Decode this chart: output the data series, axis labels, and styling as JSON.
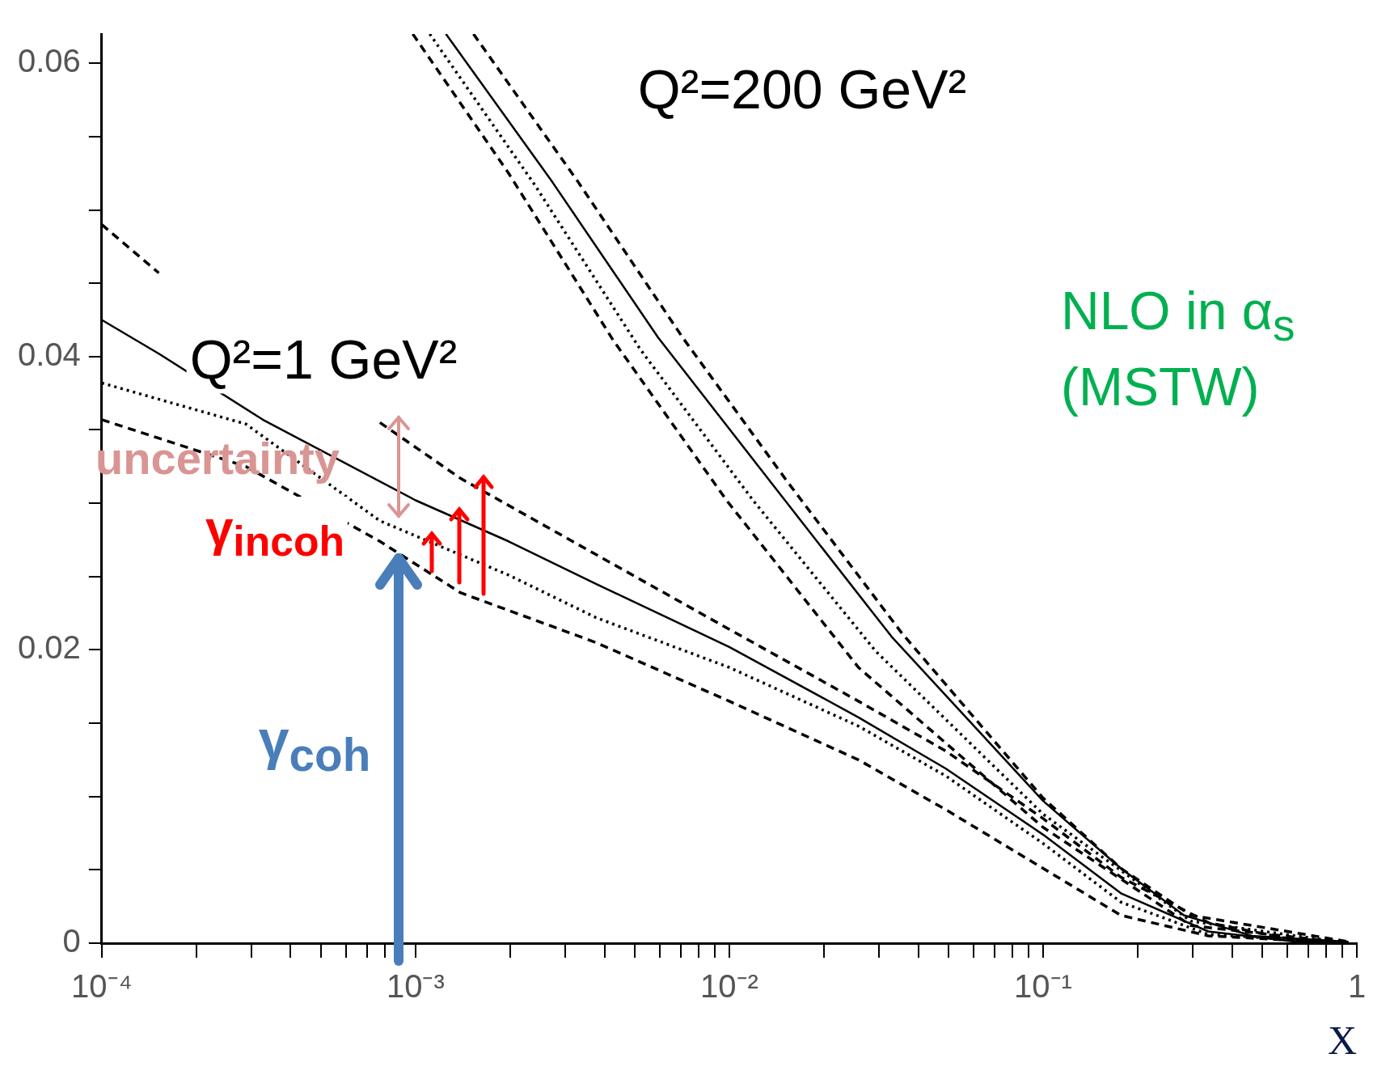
{
  "chart_data": {
    "type": "line",
    "xlabel": "X",
    "log": "x",
    "grid": false,
    "legend": false,
    "marker": "none",
    "xlim": [
      0.0001,
      1
    ],
    "ylim": [
      0,
      0.062
    ],
    "xticks": [
      {
        "value": 0.0001,
        "label": "10⁻⁴"
      },
      {
        "value": 0.0002,
        "label": null
      },
      {
        "value": 0.0003,
        "label": null
      },
      {
        "value": 0.0004,
        "label": null
      },
      {
        "value": 0.0005,
        "label": null
      },
      {
        "value": 0.0006,
        "label": null
      },
      {
        "value": 0.0007,
        "label": null
      },
      {
        "value": 0.0008,
        "label": null
      },
      {
        "value": 0.0009,
        "label": null
      },
      {
        "value": 0.001,
        "label": "10⁻³"
      },
      {
        "value": 0.002,
        "label": null
      },
      {
        "value": 0.003,
        "label": null
      },
      {
        "value": 0.004,
        "label": null
      },
      {
        "value": 0.005,
        "label": null
      },
      {
        "value": 0.006,
        "label": null
      },
      {
        "value": 0.007,
        "label": null
      },
      {
        "value": 0.008,
        "label": null
      },
      {
        "value": 0.009,
        "label": null
      },
      {
        "value": 0.01,
        "label": "10⁻²"
      },
      {
        "value": 0.02,
        "label": null
      },
      {
        "value": 0.03,
        "label": null
      },
      {
        "value": 0.04,
        "label": null
      },
      {
        "value": 0.05,
        "label": null
      },
      {
        "value": 0.06,
        "label": null
      },
      {
        "value": 0.07,
        "label": null
      },
      {
        "value": 0.08,
        "label": null
      },
      {
        "value": 0.09,
        "label": null
      },
      {
        "value": 0.1,
        "label": "10⁻¹"
      },
      {
        "value": 0.2,
        "label": null
      },
      {
        "value": 0.3,
        "label": null
      },
      {
        "value": 0.4,
        "label": null
      },
      {
        "value": 0.5,
        "label": null
      },
      {
        "value": 0.6,
        "label": null
      },
      {
        "value": 0.7,
        "label": null
      },
      {
        "value": 0.8,
        "label": null
      },
      {
        "value": 0.9,
        "label": null
      },
      {
        "value": 1,
        "label": "1"
      }
    ],
    "yticks": [
      0,
      {
        "value": 0.005,
        "label": null
      },
      {
        "value": 0.01,
        "label": null
      },
      {
        "value": 0.015,
        "label": null
      },
      0.02,
      {
        "value": 0.025,
        "label": null
      },
      {
        "value": 0.03,
        "label": null
      },
      {
        "value": 0.035,
        "label": null
      },
      0.04,
      {
        "value": 0.045,
        "label": null
      },
      {
        "value": 0.05,
        "label": null
      },
      {
        "value": 0.055,
        "label": null
      },
      0.06
    ],
    "series": [
      {
        "color": "#000000",
        "line_style": "dashed",
        "x": [
          0.0001,
          0.000152,
          0.000288,
          0.00077,
          0.00139,
          0.00376,
          0.01,
          0.0258,
          0.049,
          0.1,
          0.177,
          0.336,
          0.64,
          0.94
        ],
        "values": [
          0.049,
          0.0457,
          null,
          0.0355,
          0.0317,
          0.0265,
          0.0214,
          0.0165,
          0.0131,
          0.0085,
          0.0045,
          0.0014,
          0.0002,
          0.0001
        ]
      },
      {
        "color": "#000000",
        "line_style": "solid",
        "x": [
          0.0001,
          0.000152,
          0.000326,
          0.001,
          0.00198,
          0.00376,
          0.01,
          0.0258,
          0.049,
          0.1,
          0.177,
          0.336,
          0.64,
          0.94
        ],
        "values": [
          0.0425,
          0.0402,
          0.0357,
          0.0302,
          0.0274,
          0.0245,
          0.0202,
          0.0154,
          0.0119,
          0.0074,
          0.0034,
          0.0008,
          0.0001,
          0
        ]
      },
      {
        "color": "#000000",
        "line_style": "dotted",
        "x": [
          0.0001,
          0.000288,
          0.00077,
          0.00198,
          0.00376,
          0.01,
          0.0258,
          0.049,
          0.1,
          0.177,
          0.336,
          0.94
        ],
        "values": [
          0.0382,
          0.0354,
          0.0288,
          0.0251,
          0.0222,
          0.0188,
          0.0148,
          0.0114,
          0.0068,
          0.0028,
          0.0006,
          0
        ]
      },
      {
        "color": "#000000",
        "line_style": "dashed",
        "x": [
          0.0001,
          0.000288,
          0.00077,
          0.00139,
          0.00376,
          0.01,
          0.0258,
          0.049,
          0.1,
          0.177,
          0.336,
          0.94
        ],
        "values": [
          0.0357,
          0.0325,
          0.0274,
          0.0239,
          0.0205,
          0.0165,
          0.0125,
          0.0091,
          0.0051,
          0.0019,
          0.0005,
          0
        ]
      },
      {
        "color": "#000000",
        "line_style": "dashed",
        "x": [
          0.00153,
          0.0033,
          0.0071,
          0.0154,
          0.0356,
          0.1,
          0.177,
          0.296,
          0.94
        ],
        "values": [
          0.062,
          0.0519,
          0.0413,
          0.0314,
          0.0211,
          0.0099,
          0.0051,
          0.0019,
          0.0001
        ]
      },
      {
        "color": "#000000",
        "line_style": "solid",
        "x": [
          0.00125,
          0.00273,
          0.00593,
          0.0136,
          0.0329,
          0.1,
          0.177,
          0.281,
          0.463,
          0.94
        ],
        "values": [
          0.062,
          0.0519,
          0.0413,
          0.0314,
          0.0209,
          0.0097,
          0.0051,
          0.0019,
          0.0005,
          0.0001
        ]
      },
      {
        "color": "#000000",
        "line_style": "dotted",
        "x": [
          0.00111,
          0.0024,
          0.0052,
          0.0119,
          0.0293,
          0.1,
          0.296,
          0.94
        ],
        "values": [
          0.062,
          0.0517,
          0.0405,
          0.0302,
          0.0199,
          0.0088,
          0.0015,
          0
        ]
      },
      {
        "color": "#000000",
        "line_style": "dashed",
        "x": [
          0.00098,
          0.00198,
          0.00427,
          0.0098,
          0.0258,
          0.1,
          0.296,
          0.94
        ],
        "values": [
          0.062,
          0.0525,
          0.0411,
          0.0302,
          0.0188,
          0.0079,
          0.0012,
          0
        ]
      }
    ],
    "annotations": [
      "Q²=200 GeV²",
      "Q²=1 GeV²",
      "uncertainty",
      "γ$_{incoh}$",
      "γ$_{coh}$",
      "NLO in α$_{s}$\n(MSTW)"
    ]
  }
}
